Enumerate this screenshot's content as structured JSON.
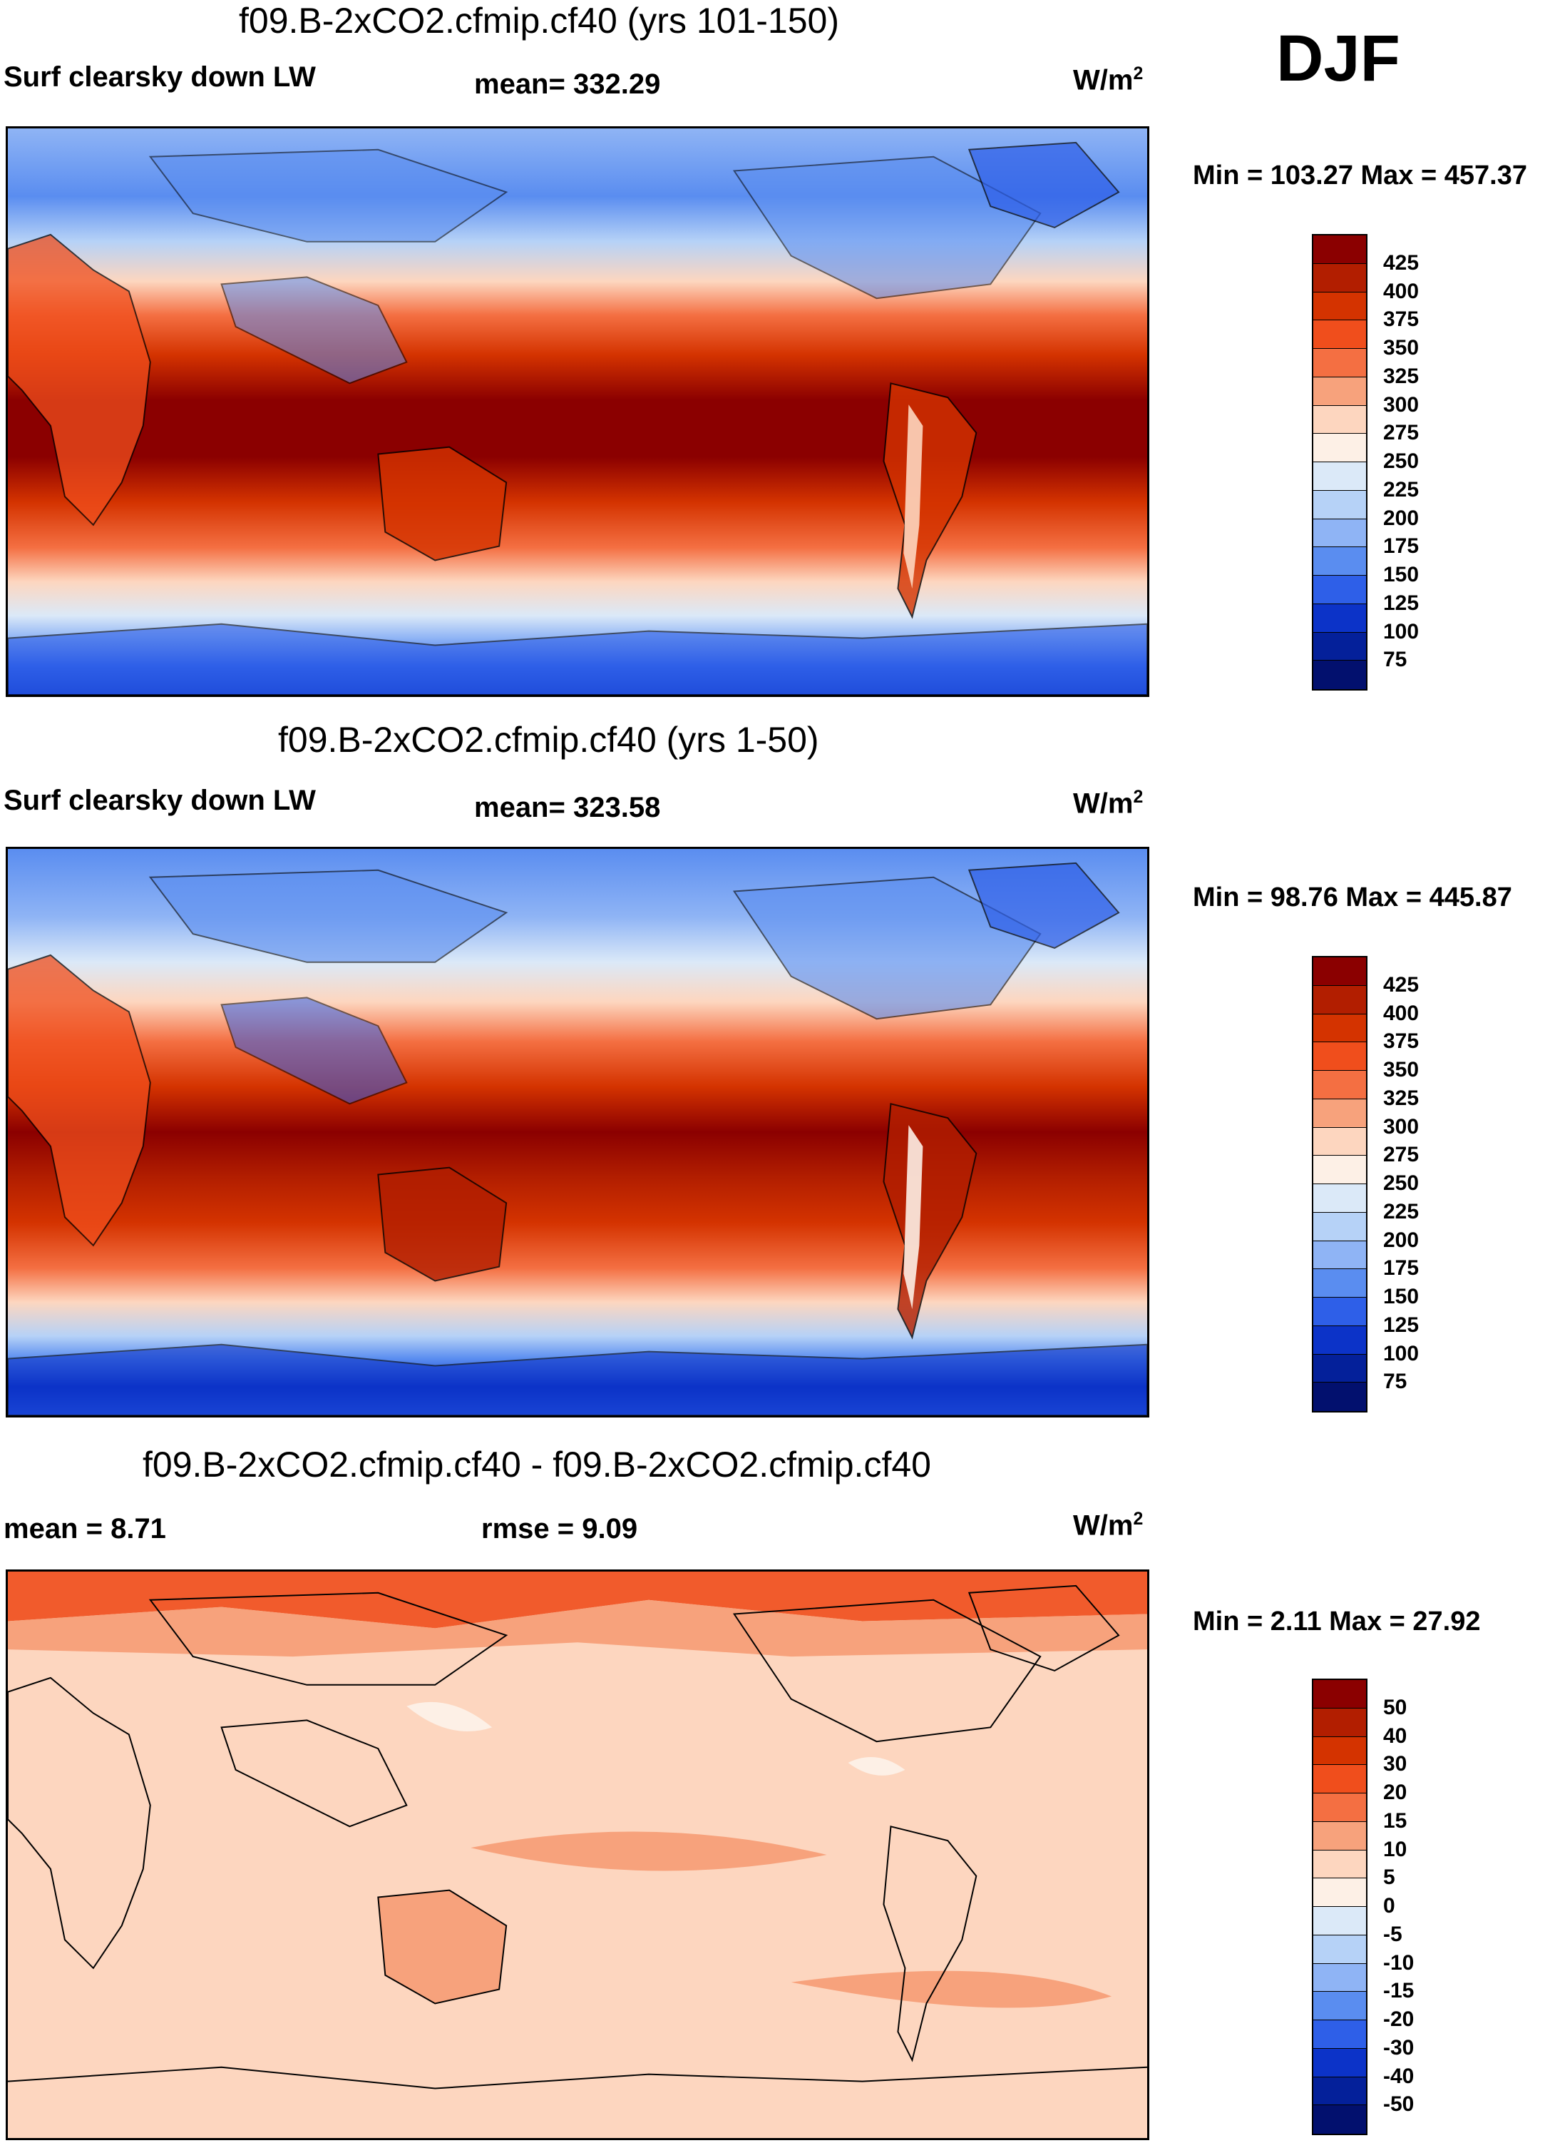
{
  "season": "DJF",
  "panels": [
    {
      "title": "f09.B-2xCO2.cfmip.cf40 (yrs 101-150)",
      "left_label": "Surf clearsky down LW",
      "mid_label": "mean= 332.29",
      "units_base": "W/m",
      "units_exp": "2",
      "minmax": "Min = 103.27 Max = 457.37",
      "kind": "field"
    },
    {
      "title": "f09.B-2xCO2.cfmip.cf40 (yrs 1-50)",
      "left_label": "Surf clearsky down LW",
      "mid_label": "mean= 323.58",
      "units_base": "W/m",
      "units_exp": "2",
      "minmax": "Min =  98.76 Max = 445.87",
      "kind": "field"
    },
    {
      "title": "f09.B-2xCO2.cfmip.cf40 - f09.B-2xCO2.cfmip.cf40",
      "left_label": "mean =   8.71",
      "mid_label": "rmse =   9.09",
      "units_base": "W/m",
      "units_exp": "2",
      "minmax": "Min =   2.11 Max =  27.92",
      "kind": "diff"
    }
  ],
  "colorbars": {
    "field": {
      "labels": [
        "425",
        "400",
        "375",
        "350",
        "325",
        "300",
        "275",
        "250",
        "225",
        "200",
        "175",
        "150",
        "125",
        "100",
        "75"
      ],
      "colors": [
        "#8b0000",
        "#b21e00",
        "#d43300",
        "#f04e1c",
        "#f46f42",
        "#f7a27c",
        "#fdd6bf",
        "#fdf0e6",
        "#dbe9f8",
        "#b6d2f7",
        "#8fb4f5",
        "#5a8df0",
        "#2e5fe8",
        "#0c33c8",
        "#04209a",
        "#02106e"
      ]
    },
    "diff": {
      "labels": [
        "50",
        "40",
        "30",
        "20",
        "15",
        "10",
        "5",
        "0",
        "-5",
        "-10",
        "-15",
        "-20",
        "-30",
        "-40",
        "-50"
      ],
      "colors": [
        "#8b0000",
        "#b21e00",
        "#d43300",
        "#f04e1c",
        "#f46f42",
        "#f7a27c",
        "#fdd6bf",
        "#fdf0e6",
        "#dbe9f8",
        "#b6d2f7",
        "#8fb4f5",
        "#5a8df0",
        "#2e5fe8",
        "#0c33c8",
        "#04209a",
        "#02106e"
      ]
    }
  }
}
